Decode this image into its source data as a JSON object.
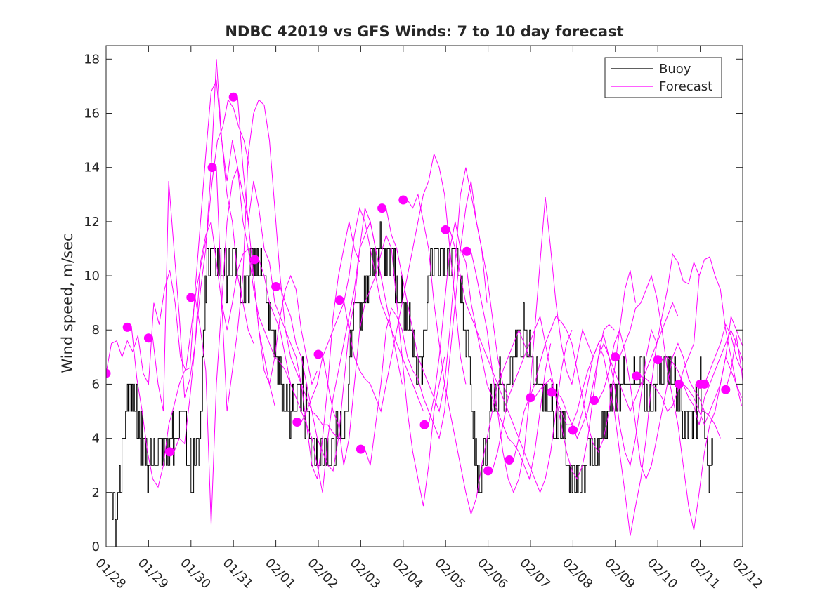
{
  "chart_data": {
    "type": "line",
    "title": "NDBC 42019 vs GFS Winds: 7 to 10 day forecast",
    "xlabel": "",
    "ylabel": "Wind speed, m/sec",
    "ylim": [
      0,
      18.5
    ],
    "xlim": [
      0,
      15
    ],
    "yticks": [
      0,
      2,
      4,
      6,
      8,
      10,
      12,
      14,
      16,
      18
    ],
    "ytick_labels": [
      "0",
      "2",
      "4",
      "6",
      "8",
      "10",
      "12",
      "14",
      "16",
      "18"
    ],
    "x_tick_labels": [
      "01/28",
      "01/29",
      "01/30",
      "01/31",
      "02/01",
      "02/02",
      "02/03",
      "02/04",
      "02/05",
      "02/06",
      "02/07",
      "02/08",
      "02/09",
      "02/10",
      "02/11",
      "02/12"
    ],
    "legend": {
      "position": "top-right",
      "entries": [
        {
          "label": "Buoy",
          "color": "#000000"
        },
        {
          "label": "Forecast",
          "color": "#ff00ff"
        }
      ]
    },
    "colors": {
      "buoy": "#000000",
      "forecast": "#ff00ff"
    },
    "buoy_anchors": [
      [
        0,
        1.5
      ],
      [
        0.15,
        1.5
      ],
      [
        0.25,
        0.5
      ],
      [
        0.35,
        3
      ],
      [
        0.5,
        5.5
      ],
      [
        0.65,
        5.5
      ],
      [
        0.8,
        4
      ],
      [
        1.0,
        3
      ],
      [
        1.3,
        3.5
      ],
      [
        1.6,
        4
      ],
      [
        1.8,
        5
      ],
      [
        2.0,
        3
      ],
      [
        2.2,
        3.5
      ],
      [
        2.35,
        10
      ],
      [
        2.6,
        11
      ],
      [
        2.8,
        10
      ],
      [
        3.0,
        10.5
      ],
      [
        3.2,
        9.5
      ],
      [
        3.4,
        10
      ],
      [
        3.6,
        11
      ],
      [
        3.8,
        9
      ],
      [
        4.0,
        7
      ],
      [
        4.2,
        5
      ],
      [
        4.4,
        5
      ],
      [
        4.6,
        6
      ],
      [
        4.8,
        4
      ],
      [
        5.0,
        3.5
      ],
      [
        5.3,
        3.5
      ],
      [
        5.6,
        4.5
      ],
      [
        5.8,
        8
      ],
      [
        6.0,
        9
      ],
      [
        6.3,
        10.5
      ],
      [
        6.6,
        11
      ],
      [
        6.8,
        10
      ],
      [
        7.0,
        8.5
      ],
      [
        7.2,
        8
      ],
      [
        7.4,
        6
      ],
      [
        7.6,
        10
      ],
      [
        7.8,
        11
      ],
      [
        8.0,
        10
      ],
      [
        8.2,
        11
      ],
      [
        8.4,
        9
      ],
      [
        8.6,
        6
      ],
      [
        8.75,
        2.5
      ],
      [
        8.9,
        3
      ],
      [
        9.1,
        5.5
      ],
      [
        9.4,
        6
      ],
      [
        9.6,
        7
      ],
      [
        9.8,
        8
      ],
      [
        10.0,
        7
      ],
      [
        10.2,
        6
      ],
      [
        10.4,
        5
      ],
      [
        10.6,
        5
      ],
      [
        10.8,
        4
      ],
      [
        11.0,
        2.5
      ],
      [
        11.2,
        2.5
      ],
      [
        11.4,
        3.5
      ],
      [
        11.6,
        3.5
      ],
      [
        11.8,
        5
      ],
      [
        12.0,
        5.5
      ],
      [
        12.2,
        6.5
      ],
      [
        12.4,
        6
      ],
      [
        12.6,
        6.5
      ],
      [
        12.8,
        5
      ],
      [
        13.0,
        6
      ],
      [
        13.2,
        7
      ],
      [
        13.4,
        6
      ],
      [
        13.6,
        5
      ],
      [
        13.8,
        4
      ],
      [
        14.0,
        6
      ],
      [
        14.2,
        2.5
      ],
      [
        14.3,
        4
      ]
    ],
    "forecast_runs": [
      {
        "start": 0.0,
        "values": [
          6.4,
          7.5,
          7.6,
          7.0,
          7.6,
          7.2,
          7.8,
          6.4,
          6.0,
          9.0,
          8.2,
          9.5,
          10.2,
          9.0,
          7.0,
          6.5,
          8.0,
          9.5,
          10.5,
          11.5,
          13.5,
          15.0,
          15.5,
          16.5,
          16.2,
          15.5,
          15.0,
          14.0
        ]
      },
      {
        "start": 0.6,
        "values": [
          8.1,
          6.2,
          5.0,
          3.5,
          2.5,
          2.2,
          3.0,
          4.5,
          5.2,
          6.0,
          6.5,
          6.6,
          9.5,
          12.0,
          14.5,
          16.8,
          17.2,
          15.0,
          13.0,
          12.0,
          10.0,
          9.0,
          8.0,
          7.5
        ]
      },
      {
        "start": 1.1,
        "values": [
          7.7,
          6.0,
          5.0,
          13.5,
          11.0,
          8.5,
          5.5,
          6.2,
          7.5,
          10.5,
          11.5,
          12.0,
          10.5,
          9.0,
          8.0,
          9.0,
          10.2,
          10.8,
          11.0,
          10.0,
          8.0,
          7.0,
          6.0,
          5.2
        ]
      },
      {
        "start": 1.6,
        "values": [
          3.5,
          4.0,
          3.8,
          5.5,
          7.5,
          9.5,
          11.0,
          14.0,
          18.0,
          15.0,
          13.5,
          15.0,
          14.0,
          12.0,
          11.0,
          9.5,
          8.5,
          8.0,
          7.5,
          7.0,
          6.8,
          6.5,
          6.0,
          5.5
        ]
      },
      {
        "start": 2.1,
        "values": [
          9.2,
          8.0,
          6.5,
          0.8,
          6.0,
          9.0,
          12.0,
          13.5,
          14.0,
          13.0,
          12.0,
          10.0,
          8.0,
          6.5,
          6.0,
          7.0,
          8.5,
          9.5,
          10.0,
          9.5,
          8.0,
          7.0,
          6.0,
          6.5
        ]
      },
      {
        "start": 2.6,
        "values": [
          14.0,
          9.0,
          5.0,
          6.5,
          8.0,
          10.0,
          14.5,
          16.0,
          16.5,
          16.3,
          15.0,
          12.5,
          10.0,
          8.0,
          7.0,
          6.5,
          6.0,
          5.5,
          5.0,
          4.8,
          4.5,
          4.5,
          4.2,
          4.0
        ]
      },
      {
        "start": 3.1,
        "values": [
          16.6,
          14.0,
          12.0,
          13.5,
          12.5,
          11.0,
          10.5,
          9.0,
          8.5,
          8.0,
          7.5,
          7.0,
          6.0,
          4.5,
          3.0,
          2.5,
          4.0,
          6.0,
          8.5,
          10.0,
          11.0,
          12.0,
          11.0,
          10.5
        ]
      },
      {
        "start": 3.6,
        "values": [
          10.6,
          10.0,
          9.0,
          8.5,
          8.0,
          7.0,
          6.0,
          5.5,
          5.0,
          4.5,
          4.0,
          3.0,
          2.0,
          4.0,
          5.5,
          6.5,
          7.5,
          8.5,
          9.5,
          11.0,
          11.5,
          12.0,
          11.0,
          10.0
        ]
      },
      {
        "start": 4.1,
        "values": [
          9.6,
          9.0,
          8.5,
          7.5,
          7.0,
          6.0,
          5.0,
          4.0,
          3.5,
          3.0,
          2.8,
          4.0,
          6.0,
          8.0,
          9.0,
          11.0,
          12.5,
          12.0,
          11.0,
          10.0,
          9.0,
          8.0,
          7.0,
          6.0
        ]
      },
      {
        "start": 4.6,
        "values": [
          4.6,
          5.0,
          5.5,
          6.0,
          7.0,
          7.5,
          8.0,
          8.5,
          9.0,
          10.0,
          11.5,
          12.5,
          12.0,
          11.0,
          10.0,
          9.0,
          8.5,
          8.0,
          7.5,
          7.0,
          6.5,
          6.0,
          5.5,
          5.0
        ]
      },
      {
        "start": 5.1,
        "values": [
          7.1,
          6.0,
          5.0,
          4.5,
          3.0,
          4.0,
          6.0,
          8.0,
          9.0,
          9.5,
          10.0,
          10.8,
          11.5,
          11.0,
          9.0,
          7.0,
          5.0,
          3.5,
          2.5,
          1.5,
          3.0,
          5.0,
          6.0,
          7.0
        ]
      },
      {
        "start": 5.6,
        "values": [
          9.1,
          8.0,
          7.0,
          6.5,
          6.2,
          6.0,
          5.5,
          5.0,
          6.0,
          7.0,
          8.0,
          9.0,
          10.0,
          11.0,
          12.0,
          13.0,
          13.5,
          14.5,
          14.0,
          13.0,
          11.0,
          9.0,
          7.0,
          6.0
        ]
      },
      {
        "start": 6.1,
        "values": [
          3.6,
          3.0,
          4.5,
          6.0,
          8.0,
          8.8,
          8.5,
          8.0,
          7.0,
          6.5,
          6.2,
          5.5,
          5.0,
          4.5,
          4.0,
          5.0,
          7.0,
          9.0,
          11.0,
          12.5,
          13.5,
          12.0,
          11.0,
          9.0
        ]
      },
      {
        "start": 6.6,
        "values": [
          12.5,
          11.5,
          11.0,
          10.0,
          9.0,
          8.0,
          7.0,
          6.5,
          6.0,
          5.5,
          5.0,
          6.0,
          8.0,
          10.5,
          13.0,
          14.0,
          13.0,
          12.0,
          11.0,
          10.0,
          8.5,
          7.0,
          6.0,
          5.5
        ]
      },
      {
        "start": 7.1,
        "values": [
          12.8,
          12.5,
          13.0,
          12.0,
          11.0,
          9.0,
          7.5,
          6.0,
          5.0,
          4.0,
          3.0,
          2.0,
          1.2,
          1.8,
          3.0,
          4.0,
          5.0,
          6.0,
          6.5,
          7.0,
          7.5,
          8.0,
          7.5,
          7.0
        ]
      },
      {
        "start": 7.6,
        "values": [
          4.5,
          5.5,
          7.0,
          9.0,
          11.0,
          12.0,
          11.0,
          10.5,
          9.0,
          8.0,
          7.0,
          6.0,
          5.5,
          5.0,
          4.5,
          4.0,
          3.8,
          3.5,
          3.0,
          2.5,
          3.5,
          5.0,
          6.5,
          7.5
        ]
      },
      {
        "start": 8.1,
        "values": [
          11.7,
          11.0,
          10.0,
          9.0,
          8.5,
          8.0,
          7.5,
          7.0,
          6.5,
          6.0,
          5.5,
          5.0,
          4.5,
          4.0,
          3.5,
          3.0,
          2.5,
          2.0,
          2.5,
          3.5,
          5.0,
          6.5,
          7.5,
          8.0
        ]
      },
      {
        "start": 8.6,
        "values": [
          10.9,
          10.0,
          9.0,
          8.0,
          6.5,
          5.0,
          3.5,
          2.5,
          2.0,
          2.5,
          3.5,
          5.5,
          8.0,
          10.5,
          12.9,
          11.0,
          9.0,
          7.5,
          6.5,
          6.0,
          7.0,
          8.0,
          7.5,
          7.0
        ]
      },
      {
        "start": 9.1,
        "values": [
          2.8,
          3.5,
          4.5,
          5.5,
          6.0,
          6.5,
          7.0,
          7.5,
          8.0,
          8.5,
          7.5,
          6.5,
          5.5,
          4.5,
          3.5,
          2.8,
          2.5,
          3.0,
          4.0,
          5.5,
          7.0,
          8.0,
          8.2,
          8.0
        ]
      },
      {
        "start": 9.6,
        "values": [
          3.2,
          4.0,
          5.0,
          5.5,
          6.0,
          6.8,
          7.5,
          8.0,
          8.5,
          8.3,
          8.0,
          7.5,
          6.5,
          5.5,
          4.5,
          3.8,
          3.5,
          4.0,
          5.0,
          6.5,
          8.0,
          9.5,
          10.2,
          9.0
        ]
      },
      {
        "start": 10.1,
        "values": [
          5.5,
          5.8,
          6.0,
          6.2,
          5.5,
          5.0,
          4.5,
          4.5,
          5.0,
          5.8,
          6.5,
          7.0,
          7.5,
          7.8,
          7.0,
          6.0,
          4.5,
          3.5,
          3.0,
          4.0,
          5.5,
          7.0,
          8.0,
          7.5
        ]
      },
      {
        "start": 10.6,
        "values": [
          5.7,
          5.5,
          5.0,
          4.5,
          4.0,
          4.5,
          5.0,
          6.0,
          7.0,
          7.5,
          7.0,
          6.5,
          6.0,
          5.5,
          5.0,
          5.5,
          6.0,
          6.5,
          7.0,
          7.5,
          8.0,
          8.5,
          9.0,
          8.5
        ]
      },
      {
        "start": 11.1,
        "values": [
          4.3,
          5.0,
          6.0,
          7.0,
          7.5,
          7.0,
          6.0,
          5.0,
          3.5,
          2.0,
          0.4,
          1.5,
          2.5,
          4.0,
          6.0,
          7.5,
          8.5,
          9.5,
          10.8,
          10.5,
          9.8,
          9.7,
          10.5,
          10.0
        ]
      },
      {
        "start": 11.6,
        "values": [
          5.4,
          5.8,
          6.5,
          7.5,
          8.0,
          7.2,
          6.0,
          4.5,
          3.0,
          2.5,
          3.0,
          4.0,
          5.0,
          6.0,
          7.0,
          7.5,
          7.0,
          6.2,
          5.8,
          5.5,
          5.0,
          4.8,
          4.5,
          4.0
        ]
      },
      {
        "start": 12.1,
        "values": [
          7.0,
          7.5,
          8.0,
          8.8,
          9.0,
          9.5,
          10.0,
          9.2,
          8.0,
          6.5,
          5.5,
          4.5,
          3.0,
          1.5,
          0.6,
          2.0,
          3.5,
          4.5,
          5.0,
          6.0,
          7.0,
          6.5,
          6.0,
          5.5
        ]
      },
      {
        "start": 12.6,
        "values": [
          6.3,
          6.2,
          6.0,
          5.8,
          5.5,
          5.0,
          5.2,
          5.8,
          6.5,
          7.0,
          7.5,
          10.0,
          10.6,
          10.7,
          10.0,
          9.5,
          8.0,
          7.0,
          6.0,
          5.2
        ]
      },
      {
        "start": 13.1,
        "values": [
          6.9,
          7.0,
          6.8,
          6.5,
          6.0,
          5.5,
          5.2,
          4.5,
          5.5,
          6.0,
          6.5,
          7.0,
          7.5,
          8.0,
          7.5,
          7.0,
          6.2,
          6.0
        ]
      },
      {
        "start": 13.6,
        "values": [
          6.0,
          5.8,
          5.5,
          5.0,
          4.5,
          5.0,
          5.5,
          6.0,
          7.0,
          8.5,
          8.0,
          7.5,
          7.0,
          6.0,
          5.0,
          4.0
        ]
      },
      {
        "start": 14.1,
        "values": [
          6.0,
          6.5,
          7.0,
          7.5,
          8.2,
          7.8,
          7.0,
          6.5,
          7.0,
          7.5
        ]
      },
      {
        "start": 14.6,
        "values": [
          5.8,
          6.5,
          7.8,
          6.5,
          4.5,
          2.6
        ]
      }
    ],
    "forecast_markers": [
      [
        0.0,
        6.4
      ],
      [
        0.5,
        8.1
      ],
      [
        1.0,
        7.7
      ],
      [
        1.5,
        3.5
      ],
      [
        2.0,
        9.2
      ],
      [
        2.5,
        14.0
      ],
      [
        3.0,
        16.6
      ],
      [
        3.5,
        10.6
      ],
      [
        4.0,
        9.6
      ],
      [
        4.5,
        4.6
      ],
      [
        5.0,
        7.1
      ],
      [
        5.5,
        9.1
      ],
      [
        6.0,
        3.6
      ],
      [
        6.5,
        12.5
      ],
      [
        7.0,
        12.8
      ],
      [
        7.5,
        4.5
      ],
      [
        8.0,
        11.7
      ],
      [
        8.5,
        10.9
      ],
      [
        9.0,
        2.8
      ],
      [
        9.5,
        3.2
      ],
      [
        10.0,
        5.5
      ],
      [
        10.5,
        5.7
      ],
      [
        11.0,
        4.3
      ],
      [
        11.5,
        5.4
      ],
      [
        12.0,
        7.0
      ],
      [
        12.5,
        6.3
      ],
      [
        13.0,
        6.9
      ],
      [
        13.5,
        6.0
      ],
      [
        14.0,
        6.0
      ],
      [
        14.1,
        6.0
      ],
      [
        14.6,
        5.8
      ]
    ]
  }
}
